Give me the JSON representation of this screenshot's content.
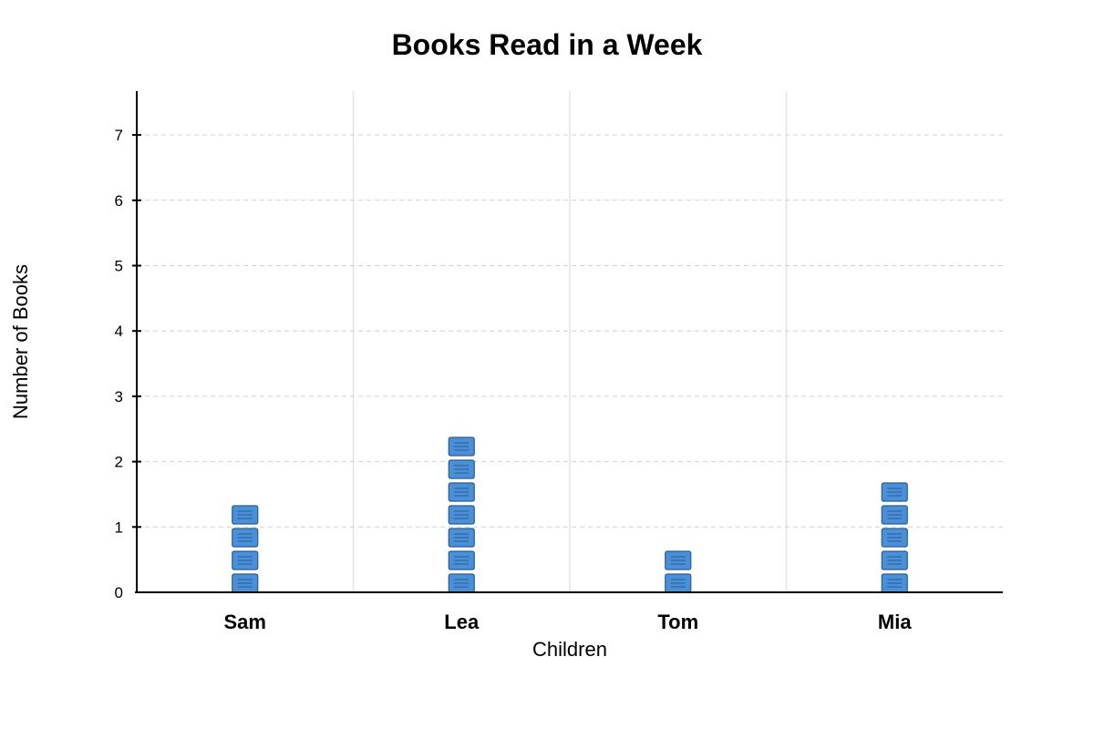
{
  "chart_data": {
    "type": "pictograph",
    "title": "Books Read in a Week",
    "xlabel": "Children",
    "ylabel": "Number of Books",
    "categories": [
      "Sam",
      "Lea",
      "Tom",
      "Mia"
    ],
    "values": [
      1.25,
      2.25,
      0.5,
      1.5
    ],
    "icon_counts": [
      4,
      7,
      2,
      5
    ],
    "icon": "book-icon",
    "yticks": [
      0,
      1,
      2,
      3,
      4,
      5,
      6,
      7
    ],
    "ylim": [
      0,
      7.7
    ],
    "grid": true,
    "icon_color": "#4a90d9",
    "icon_stroke": "#2a5d8f"
  }
}
